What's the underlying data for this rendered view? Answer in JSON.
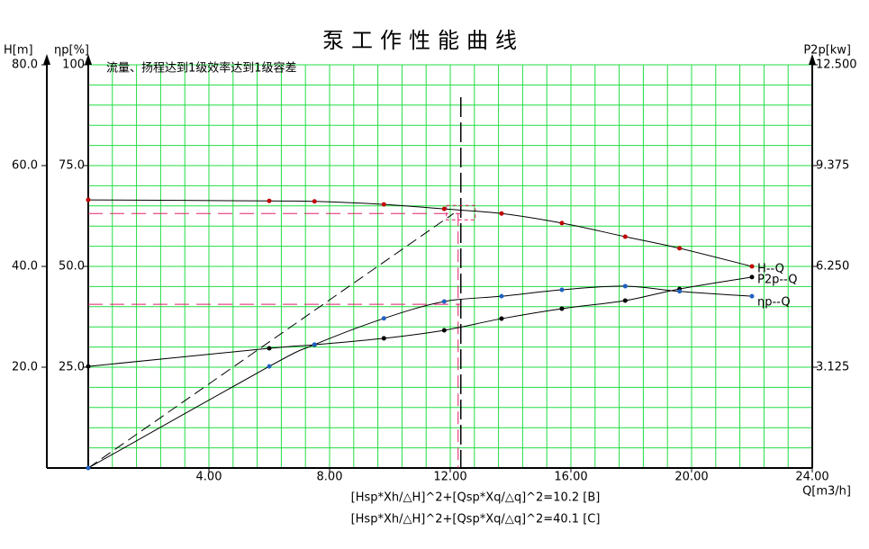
{
  "chart_data": {
    "type": "line",
    "title": "泵工作性能曲线",
    "annotation": "流量、扬程达到1级效率达到1级容差",
    "formulas": [
      "[Hsp*Xh/△H]^2+[Qsp*Xq/△q]^2=10.2 [B]",
      "[Hsp*Xh/△H]^2+[Qsp*Xq/△q]^2=40.1 [C]"
    ],
    "x_label": "Q[m3/h]",
    "y_label": "H[m]",
    "y3_label": "ηp[%]",
    "y2_label": "P2p[kw]",
    "x": [
      0,
      6.0,
      7.5,
      9.8,
      11.8,
      13.7,
      15.7,
      17.8,
      19.6,
      22.0
    ],
    "series": [
      {
        "name": "H--Q",
        "axis": "y",
        "color": "#c00000",
        "line_color": "#000000",
        "values": [
          53.2,
          53.0,
          52.9,
          52.3,
          51.4,
          50.5,
          48.6,
          45.9,
          43.6,
          40.0
        ]
      },
      {
        "name": "P2p--Q",
        "axis": "y2",
        "color": "#000000",
        "line_color": "#000000",
        "values": [
          3.15,
          3.71,
          3.82,
          4.02,
          4.27,
          4.63,
          4.94,
          5.19,
          5.55,
          5.92
        ]
      },
      {
        "name": "ηp--Q",
        "axis": "y3",
        "color": "#2060c0",
        "line_color": "#000000",
        "values": [
          0,
          25.2,
          30.6,
          37.1,
          41.3,
          42.6,
          44.2,
          45.1,
          43.8,
          42.6
        ]
      }
    ],
    "duty_point": {
      "x": 12.35,
      "h": 50.5,
      "eta": 40.6
    },
    "xlim": [
      0,
      24
    ],
    "xticks": [
      {
        "value": 4,
        "label": "4.00"
      },
      {
        "value": 8,
        "label": "8.00"
      },
      {
        "value": 12,
        "label": "12.00"
      },
      {
        "value": 16,
        "label": "16.00"
      },
      {
        "value": 20,
        "label": "20.00"
      },
      {
        "value": 24,
        "label": "24.00"
      }
    ],
    "ylim": [
      0,
      80
    ],
    "yticks": [
      {
        "value": 20,
        "label": "20.0"
      },
      {
        "value": 40,
        "label": "40.0"
      },
      {
        "value": 60,
        "label": "60.0"
      },
      {
        "value": 80,
        "label": "80.0"
      }
    ],
    "y3lim": [
      0,
      100
    ],
    "y3ticks": [
      {
        "value": 25,
        "label": "25.0"
      },
      {
        "value": 50,
        "label": "50.0"
      },
      {
        "value": 75,
        "label": "75.0"
      },
      100
    ],
    "y2lim": [
      0,
      12.5
    ],
    "y2ticks": [
      3.125,
      {
        "value": 6.25,
        "label": "6.250"
      },
      9.375,
      {
        "value": 12.5,
        "label": "12.500"
      }
    ],
    "grid": true,
    "grid_step": {
      "x": 0.8,
      "y": 4
    }
  }
}
